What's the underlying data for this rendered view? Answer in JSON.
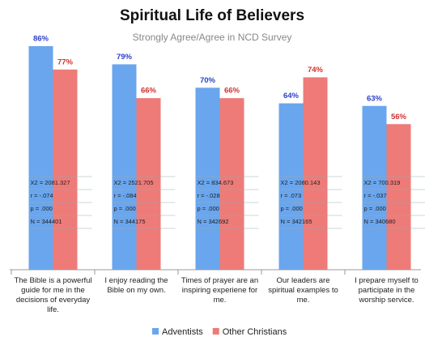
{
  "chart_data": {
    "type": "bar",
    "title": "Spiritual Life of Believers",
    "subtitle": "Strongly Agree/Agree in NCD Survey",
    "categories": [
      "The Bible is a powerful guide for me in the decisions of everyday life.",
      "I enjoy reading the Bible on my own.",
      "Times of prayer are an inspiring experiene for me.",
      "Our leaders are spiritual examples to me.",
      "I prepare myself to participate in the worship service."
    ],
    "series": [
      {
        "name": "Adventists",
        "color": "#6aa6ee",
        "label_color": "#2c3fc8",
        "values": [
          86,
          79,
          70,
          64,
          63
        ],
        "value_labels": [
          "86%",
          "79%",
          "70%",
          "64%",
          "63%"
        ]
      },
      {
        "name": "Other Christians",
        "color": "#ee7b78",
        "label_color": "#d03030",
        "values": [
          77,
          66,
          66,
          74,
          56
        ],
        "value_labels": [
          "77%",
          "66%",
          "66%",
          "74%",
          "56%"
        ]
      }
    ],
    "annotations": [
      [
        "X2 = 2081.327",
        "r = -.074",
        "p = .000",
        "N = 344401"
      ],
      [
        "X2 = 2521.705",
        "r = -.084",
        "p = .000",
        "N = 344175"
      ],
      [
        "X2 = 834.673",
        "r = -.028",
        "p = .000",
        "N = 342692"
      ],
      [
        "X2 = 2080.143",
        "r = .073",
        "p = .000",
        "N = 342165"
      ],
      [
        "X2 = 700.319",
        "r = -.037",
        "p = .000",
        "N = 340680"
      ]
    ],
    "legend": "bottom"
  }
}
